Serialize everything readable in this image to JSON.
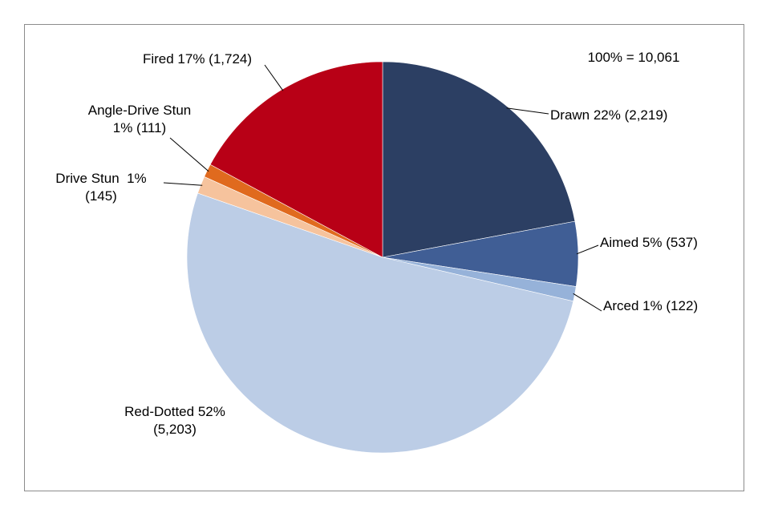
{
  "chart_data": {
    "type": "pie",
    "title": "",
    "total_label": "100% = 10,061",
    "start_angle_deg": 0,
    "direction": "clockwise",
    "slices": [
      {
        "name": "Drawn",
        "value": 2219,
        "percent_label": "22%",
        "count_label": "(2,219)",
        "color": "#2c3f63",
        "lines": [
          "Drawn 22% (2,219)"
        ]
      },
      {
        "name": "Aimed",
        "value": 537,
        "percent_label": "5%",
        "count_label": "(537)",
        "color": "#405e95",
        "lines": [
          "Aimed 5% (537)"
        ]
      },
      {
        "name": "Arced",
        "value": 122,
        "percent_label": "1%",
        "count_label": "(122)",
        "color": "#96b2d9",
        "lines": [
          "Arced 1% (122)"
        ]
      },
      {
        "name": "Red-Dotted",
        "value": 5203,
        "percent_label": "52%",
        "count_label": "(5,203)",
        "color": "#bccde6",
        "lines": [
          "Red-Dotted 52%",
          "(5,203)"
        ]
      },
      {
        "name": "Drive Stun",
        "value": 145,
        "percent_label": "1%",
        "count_label": "(145)",
        "color": "#f6c39d",
        "lines": [
          "Drive Stun  1%",
          "(145)"
        ]
      },
      {
        "name": "Angle-Drive Stun",
        "value": 111,
        "percent_label": "1%",
        "count_label": "(111)",
        "color": "#e06a1e",
        "lines": [
          "Angle-Drive Stun",
          "1% (111)"
        ]
      },
      {
        "name": "Fired",
        "value": 1724,
        "percent_label": "17%",
        "count_label": "(1,724)",
        "color": "#b80016",
        "lines": [
          "Fired 17% (1,724)"
        ]
      }
    ]
  }
}
